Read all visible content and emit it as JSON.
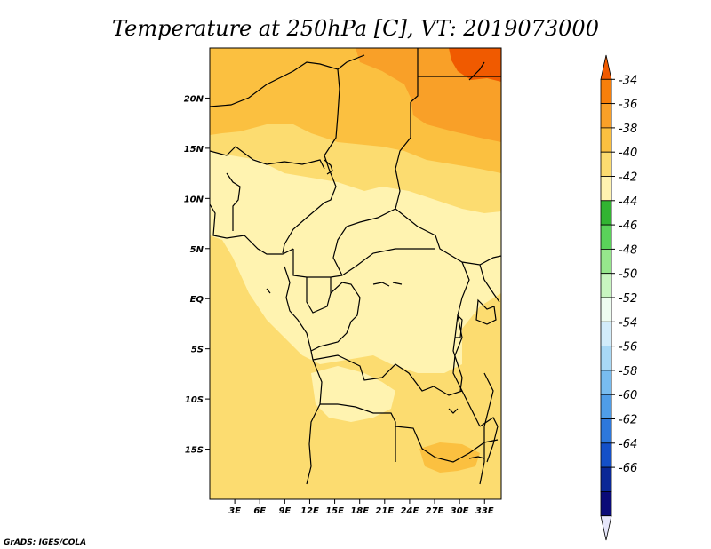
{
  "title": "Temperature at 250hPa [C], VT: 2019073000",
  "footer": "GrADS: IGES/COLA",
  "map": {
    "lon_range": [
      0,
      35
    ],
    "lat_range": [
      -20,
      25
    ],
    "lon_ticks": [
      "3E",
      "6E",
      "9E",
      "12E",
      "15E",
      "18E",
      "21E",
      "24E",
      "27E",
      "30E",
      "33E"
    ],
    "lat_ticks": [
      "20N",
      "15N",
      "10N",
      "5N",
      "EQ",
      "5S",
      "10S",
      "15S"
    ]
  },
  "colorbar": {
    "labels": [
      "-34",
      "-36",
      "-38",
      "-40",
      "-42",
      "-44",
      "-46",
      "-48",
      "-50",
      "-52",
      "-54",
      "-56",
      "-58",
      "-60",
      "-62",
      "-64",
      "-66"
    ],
    "colors_top_to_bottom": [
      "#f05a00",
      "#f77f0a",
      "#f9a028",
      "#fbc040",
      "#fcdc70",
      "#fff3b0",
      "#32b432",
      "#5ad25a",
      "#96e68c",
      "#c8f5c0",
      "#eefcf0",
      "#d2ecfa",
      "#a8d8f5",
      "#78bcf0",
      "#4f9de8",
      "#2d78dc",
      "#1450c8",
      "#0a2896",
      "#0a0a78",
      "#e6e6fa"
    ]
  },
  "legend_colors": {
    "warm_top": "#f05a00",
    "c36_38": "#f9a028",
    "c38_40": "#fbc040",
    "c40_42": "#fcdc70",
    "c42_44": "#fff3b0"
  }
}
